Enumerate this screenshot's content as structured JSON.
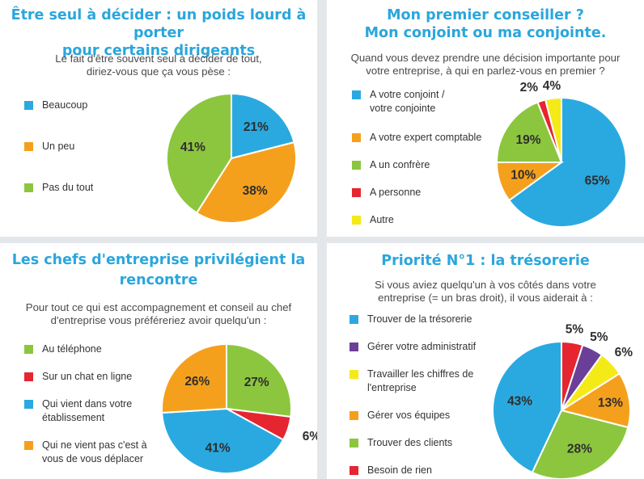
{
  "colors": {
    "blue": "#2aa9e0",
    "orange": "#f5a01c",
    "green": "#8cc63f",
    "red": "#e52530",
    "yellow": "#f4ea18",
    "purple": "#6b3f98"
  },
  "panels": [
    {
      "title": [
        "Être seul à décider : un poids lourd à porter",
        "pour certains dirigeants"
      ],
      "subtitle": [
        "Le fait d'être souvent seul à décider de tout,",
        "diriez-vous que ça vous pèse :"
      ],
      "legend": [
        {
          "label": "Beaucoup",
          "color": "blue"
        },
        {
          "label": "Un peu",
          "color": "orange"
        },
        {
          "label": "Pas du tout",
          "color": "green"
        }
      ]
    },
    {
      "title": [
        "Mon premier conseiller ?",
        "Mon conjoint ou ma conjointe."
      ],
      "subtitle": [
        "Quand vous devez prendre une décision importante pour",
        "votre entreprise, à qui en parlez-vous en premier ?"
      ],
      "legend": [
        {
          "label": "A votre conjoint /\nvotre conjointe",
          "color": "blue"
        },
        {
          "label": "A votre expert comptable",
          "color": "orange"
        },
        {
          "label": "A un confrère",
          "color": "green"
        },
        {
          "label": "A personne",
          "color": "red"
        },
        {
          "label": "Autre",
          "color": "yellow"
        }
      ]
    },
    {
      "title": [
        "Les chefs d'entreprise privilégient la",
        "rencontre"
      ],
      "subtitle": [
        "Pour tout ce qui est accompagnement et conseil au chef",
        "d'entreprise vous préféreriez avoir quelqu'un :"
      ],
      "legend": [
        {
          "label": "Au téléphone",
          "color": "green"
        },
        {
          "label": "Sur un chat en ligne",
          "color": "red"
        },
        {
          "label": "Qui vient dans votre\nétablissement",
          "color": "blue"
        },
        {
          "label": "Qui ne vient pas c'est à\nvous de vous déplacer",
          "color": "orange"
        }
      ]
    },
    {
      "title": [
        "Priorité N°1 : la trésorerie"
      ],
      "subtitle": [
        "Si vous aviez quelqu'un à vos côtés dans votre",
        "entreprise (= un bras droit), il vous aiderait à :"
      ],
      "legend": [
        {
          "label": "Trouver de la trésorerie",
          "color": "blue"
        },
        {
          "label": "Gérer votre administratif",
          "color": "purple"
        },
        {
          "label": "Travailler les chiffres de\nl'entreprise",
          "color": "yellow"
        },
        {
          "label": "Gérer vos équipes",
          "color": "orange"
        },
        {
          "label": "Trouver des clients",
          "color": "green"
        },
        {
          "label": "Besoin de rien",
          "color": "red"
        }
      ]
    }
  ],
  "chart_data": [
    {
      "type": "pie",
      "title": "Être seul à décider : un poids lourd à porter pour certains dirigeants",
      "categories": [
        "Beaucoup",
        "Un peu",
        "Pas du tout"
      ],
      "values": [
        21,
        38,
        41
      ],
      "labels": [
        "21%",
        "38%",
        "41%"
      ],
      "colors": [
        "blue",
        "orange",
        "green"
      ]
    },
    {
      "type": "pie",
      "title": "Mon premier conseiller ? Mon conjoint ou ma conjointe.",
      "categories": [
        "A votre conjoint / votre conjointe",
        "A votre expert comptable",
        "A un confrère",
        "A personne",
        "Autre"
      ],
      "values": [
        65,
        10,
        19,
        2,
        4
      ],
      "labels": [
        "65%",
        "10%",
        "19%",
        "2%",
        "4%"
      ],
      "colors": [
        "blue",
        "orange",
        "green",
        "red",
        "yellow"
      ]
    },
    {
      "type": "pie",
      "title": "Les chefs d'entreprise privilégient la rencontre",
      "categories": [
        "Au téléphone",
        "Sur un chat en ligne",
        "Qui vient dans votre établissement",
        "Qui ne vient pas c'est à vous de vous déplacer"
      ],
      "values": [
        27,
        6,
        41,
        26
      ],
      "labels": [
        "27%",
        "6%",
        "41%",
        "26%"
      ],
      "colors": [
        "green",
        "red",
        "blue",
        "orange"
      ]
    },
    {
      "type": "pie",
      "title": "Priorité N°1 : la trésorerie",
      "categories": [
        "Besoin de rien",
        "Gérer votre administratif",
        "Travailler les chiffres de l'entreprise",
        "Gérer vos équipes",
        "Trouver des clients",
        "Trouver de la trésorerie"
      ],
      "values": [
        5,
        5,
        6,
        13,
        28,
        43
      ],
      "labels": [
        "5%",
        "5%",
        "6%",
        "13%",
        "28%",
        "43%"
      ],
      "colors": [
        "red",
        "purple",
        "yellow",
        "orange",
        "green",
        "blue"
      ]
    }
  ]
}
